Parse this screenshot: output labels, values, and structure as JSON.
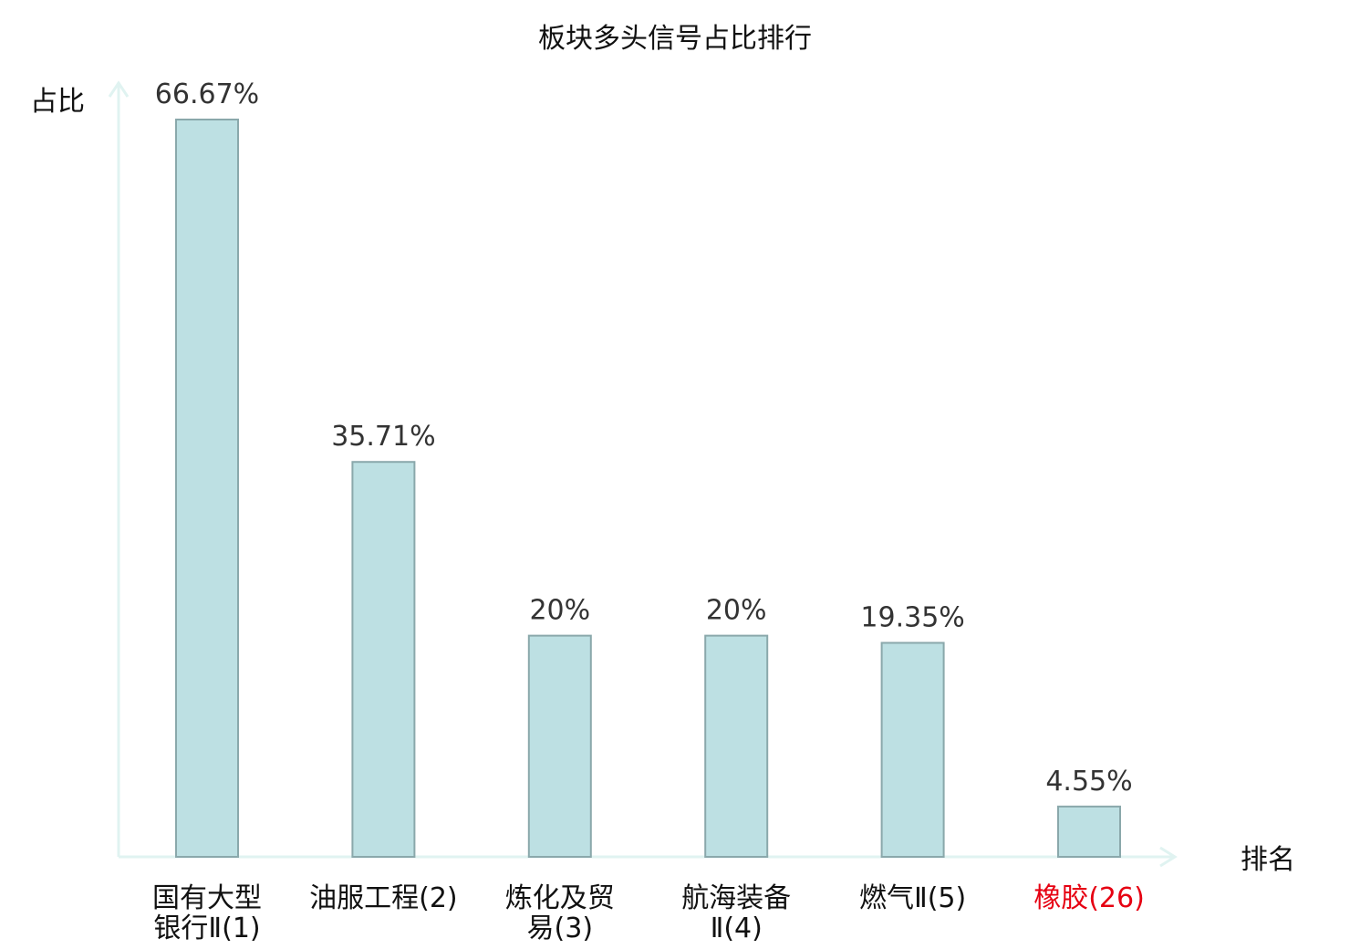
{
  "chart_data": {
    "type": "bar",
    "title": "板块多头信号占比排行",
    "ylabel": "占比",
    "xlabel": "排名",
    "ylim": [
      0,
      70
    ],
    "grid": false,
    "categories": [
      {
        "lines": [
          "国有大型",
          "银行Ⅱ(1)"
        ],
        "highlight": false
      },
      {
        "lines": [
          "油服工程(2)"
        ],
        "highlight": false
      },
      {
        "lines": [
          "炼化及贸",
          "易(3)"
        ],
        "highlight": false
      },
      {
        "lines": [
          "航海装备",
          "Ⅱ(4)"
        ],
        "highlight": false
      },
      {
        "lines": [
          "燃气Ⅱ(5)"
        ],
        "highlight": false
      },
      {
        "lines": [
          "橡胶(26)"
        ],
        "highlight": true
      }
    ],
    "values": [
      66.67,
      35.71,
      20,
      20,
      19.35,
      4.55
    ],
    "value_labels": [
      "66.67%",
      "35.71%",
      "20%",
      "20%",
      "19.35%",
      "4.55%"
    ]
  },
  "colors": {
    "bar_fill": "#bde0e3",
    "bar_stroke": "#8aa8ab",
    "axis": "#e0f3f1",
    "highlight": "#e60012"
  }
}
